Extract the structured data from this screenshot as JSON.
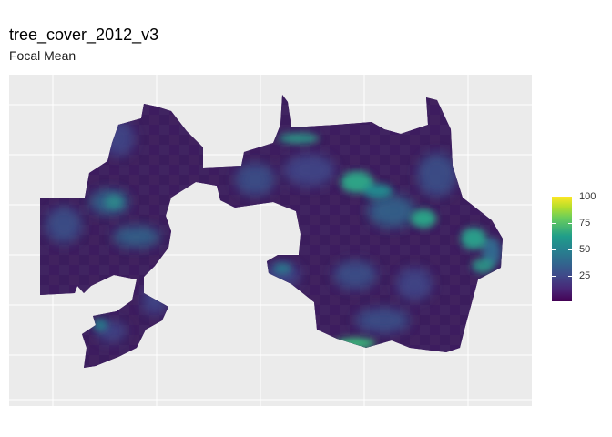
{
  "title": "tree_cover_2012_v3",
  "subtitle": "Focal Mean",
  "map": {
    "type": "raster",
    "colormap": "viridis",
    "background": "#ebebeb",
    "gridlines": true,
    "axis_labels_shown": false
  },
  "legend": {
    "min": 0,
    "max": 100,
    "labels": [
      "100",
      "75",
      "50",
      "25"
    ],
    "colors": [
      "#440154",
      "#3b528b",
      "#21908d",
      "#5dc963",
      "#fde725"
    ]
  }
}
